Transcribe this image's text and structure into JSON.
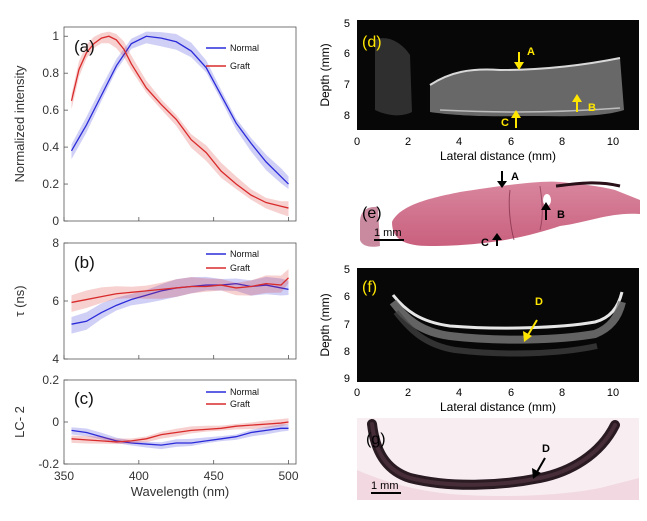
{
  "chart_data": [
    {
      "panel": "(a)",
      "type": "line",
      "ylabel": "Normalized intensity",
      "ylim": [
        0,
        1.05
      ],
      "yticks": [
        "0",
        "0.2",
        "0.4",
        "0.6",
        "0.8",
        "1"
      ],
      "xlim": [
        350,
        505
      ],
      "legend_position": "top-right",
      "series": [
        {
          "name": "Normal",
          "color": "#2b2bd9",
          "x": [
            355,
            365,
            375,
            385,
            395,
            405,
            415,
            425,
            435,
            445,
            455,
            465,
            475,
            485,
            495,
            500
          ],
          "y": [
            0.38,
            0.52,
            0.68,
            0.84,
            0.96,
            1.0,
            0.99,
            0.97,
            0.92,
            0.83,
            0.68,
            0.53,
            0.42,
            0.32,
            0.24,
            0.2
          ]
        },
        {
          "name": "Graft",
          "color": "#d92b2b",
          "x": [
            355,
            360,
            365,
            370,
            375,
            380,
            385,
            390,
            395,
            405,
            415,
            425,
            435,
            445,
            455,
            465,
            475,
            485,
            495,
            500
          ],
          "y": [
            0.65,
            0.82,
            0.91,
            0.96,
            0.99,
            1.0,
            0.98,
            0.93,
            0.85,
            0.72,
            0.63,
            0.55,
            0.44,
            0.37,
            0.27,
            0.2,
            0.14,
            0.1,
            0.08,
            0.07
          ]
        }
      ]
    },
    {
      "panel": "(b)",
      "type": "line",
      "ylabel": "τ (ns)",
      "ylim": [
        4,
        8
      ],
      "yticks": [
        "4",
        "6",
        "8"
      ],
      "xlim": [
        350,
        505
      ],
      "legend_position": "top-right",
      "series": [
        {
          "name": "Normal",
          "color": "#2b2bd9",
          "x": [
            355,
            365,
            375,
            385,
            395,
            405,
            415,
            425,
            435,
            445,
            455,
            465,
            475,
            485,
            495,
            500
          ],
          "y": [
            5.2,
            5.3,
            5.6,
            5.85,
            6.05,
            6.2,
            6.35,
            6.45,
            6.5,
            6.55,
            6.55,
            6.6,
            6.5,
            6.55,
            6.45,
            6.4
          ]
        },
        {
          "name": "Graft",
          "color": "#d92b2b",
          "x": [
            355,
            365,
            375,
            385,
            395,
            405,
            415,
            425,
            435,
            445,
            455,
            465,
            475,
            485,
            495,
            500
          ],
          "y": [
            5.95,
            6.05,
            6.15,
            6.25,
            6.3,
            6.35,
            6.4,
            6.45,
            6.5,
            6.5,
            6.55,
            6.45,
            6.5,
            6.6,
            6.55,
            6.8
          ]
        }
      ]
    },
    {
      "panel": "(c)",
      "type": "line",
      "ylabel": "LC- 2",
      "xlabel": "Wavelength (nm)",
      "ylim": [
        -0.2,
        0.2
      ],
      "yticks": [
        "-0.2",
        "0",
        "0.2"
      ],
      "xlim": [
        350,
        505
      ],
      "xticks": [
        "350",
        "400",
        "450",
        "500"
      ],
      "legend_position": "top-right",
      "series": [
        {
          "name": "Normal",
          "color": "#2b2bd9",
          "x": [
            355,
            365,
            375,
            385,
            395,
            405,
            415,
            425,
            435,
            445,
            455,
            465,
            475,
            485,
            495,
            500
          ],
          "y": [
            -0.04,
            -0.05,
            -0.07,
            -0.09,
            -0.1,
            -0.105,
            -0.11,
            -0.1,
            -0.1,
            -0.09,
            -0.08,
            -0.07,
            -0.05,
            -0.04,
            -0.03,
            -0.03
          ]
        },
        {
          "name": "Graft",
          "color": "#d92b2b",
          "x": [
            355,
            365,
            375,
            385,
            395,
            405,
            415,
            425,
            435,
            445,
            455,
            465,
            475,
            485,
            495,
            500
          ],
          "y": [
            -0.08,
            -0.085,
            -0.09,
            -0.095,
            -0.09,
            -0.08,
            -0.06,
            -0.05,
            -0.04,
            -0.035,
            -0.03,
            -0.02,
            -0.015,
            -0.01,
            -0.005,
            0.0
          ]
        }
      ]
    }
  ],
  "panels": {
    "d": {
      "label": "(d)",
      "ylabel": "Depth (mm)",
      "xlabel": "Lateral distance (mm)",
      "yticks": [
        "5",
        "6",
        "7",
        "8"
      ],
      "xticks": [
        "0",
        "2",
        "4",
        "6",
        "8",
        "10"
      ],
      "markers": [
        "A",
        "B",
        "C"
      ]
    },
    "e": {
      "label": "(e)",
      "scale": "1 mm",
      "markers": [
        "A",
        "B",
        "C"
      ]
    },
    "f": {
      "label": "(f)",
      "ylabel": "Depth (mm)",
      "xlabel": "Lateral distance (mm)",
      "yticks": [
        "5",
        "6",
        "7",
        "8",
        "9"
      ],
      "xticks": [
        "0",
        "2",
        "4",
        "6",
        "8",
        "10"
      ],
      "markers": [
        "D"
      ]
    },
    "g": {
      "label": "(g)",
      "scale": "1 mm",
      "markers": [
        "D"
      ]
    }
  },
  "colors": {
    "normal": "#2b2bd9",
    "graft": "#d92b2b",
    "marker_yellow": "#ffe600"
  }
}
